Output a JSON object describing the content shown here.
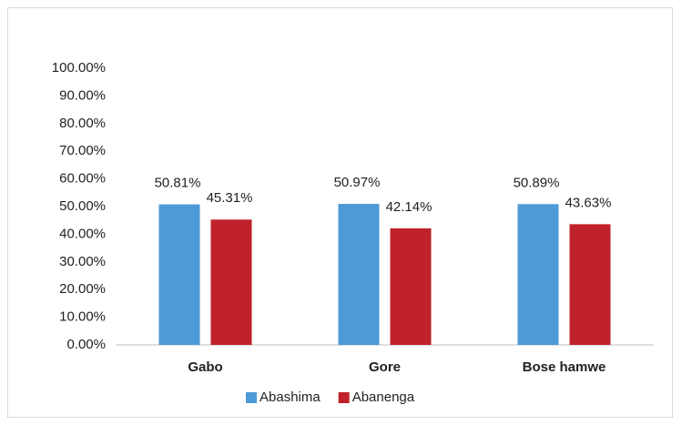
{
  "chart_data": {
    "type": "bar",
    "categories": [
      "Gabo",
      "Gore",
      "Bose hamwe"
    ],
    "series": [
      {
        "name": "Abashima",
        "color": "#4e9ad6",
        "values": [
          50.81,
          50.97,
          50.89
        ],
        "value_labels": [
          "50.81%",
          "50.97%",
          "50.89%"
        ]
      },
      {
        "name": "Abanenga",
        "color": "#c0222b",
        "values": [
          45.31,
          42.14,
          43.63
        ],
        "value_labels": [
          "45.31%",
          "42.14%",
          "43.63%"
        ]
      }
    ],
    "ylim": [
      0,
      100
    ],
    "yticks": [
      {
        "value": 0,
        "label": "0.00%"
      },
      {
        "value": 10,
        "label": "10.00%"
      },
      {
        "value": 20,
        "label": "20.00%"
      },
      {
        "value": 30,
        "label": "30.00%"
      },
      {
        "value": 40,
        "label": "40.00%"
      },
      {
        "value": 50,
        "label": "50.00%"
      },
      {
        "value": 60,
        "label": "60.00%"
      },
      {
        "value": 70,
        "label": "70.00%"
      },
      {
        "value": 80,
        "label": "80.00%"
      },
      {
        "value": 90,
        "label": "90.00%"
      },
      {
        "value": 100,
        "label": "100.00%"
      }
    ],
    "grid": false,
    "legend": "bottom"
  }
}
